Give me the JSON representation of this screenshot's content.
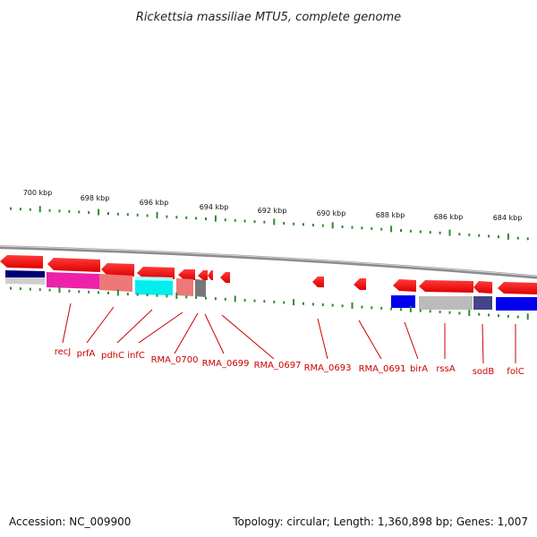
{
  "title": "Rickettsia massiliae MTU5, complete genome",
  "footer": {
    "accession": "Accession: NC_009900",
    "topology": "Topology: circular; Length: 1,360,898 bp; Genes: 1,007"
  },
  "colors": {
    "gene_arrow": "#ee0000",
    "label": "#cc0000",
    "tick": "#2f8a2f",
    "backbone": "#8c8c8c"
  },
  "kbp_labels": [
    "700 kbp",
    "698 kbp",
    "696 kbp",
    "694 kbp",
    "692 kbp",
    "690 kbp",
    "688 kbp",
    "686 kbp",
    "684 kbp"
  ],
  "gene_labels": [
    "recJ",
    "prfA",
    "pdhC",
    "infC",
    "RMA_0700",
    "RMA_0699",
    "RMA_0697",
    "RMA_0693",
    "RMA_0691",
    "birA",
    "rssA",
    "sodB",
    "folC"
  ]
}
